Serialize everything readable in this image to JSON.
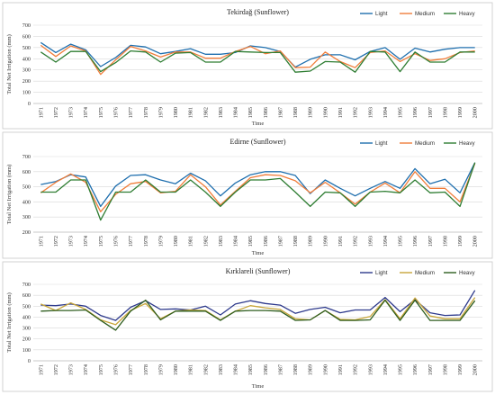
{
  "chart_data": [
    {
      "type": "line",
      "title": "Tekirdağ (Sunflower)",
      "xlabel": "Time",
      "ylabel": "Total Net Irrigation (mm)",
      "ylim": [
        0,
        700
      ],
      "yticks": [
        0,
        100,
        200,
        300,
        400,
        500,
        600,
        700
      ],
      "grid": true,
      "legend": "top-right",
      "categories": [
        "1971",
        "1972",
        "1973",
        "1974",
        "1975",
        "1976",
        "1977",
        "1978",
        "1979",
        "1980",
        "1981",
        "1982",
        "1983",
        "1984",
        "1985",
        "1986",
        "1987",
        "1988",
        "1989",
        "1990",
        "1991",
        "1992",
        "1993",
        "1994",
        "1995",
        "1996",
        "1997",
        "1998",
        "1999",
        "2000"
      ],
      "series": [
        {
          "name": "Light",
          "color": "#1f6fae",
          "values": [
            545,
            455,
            530,
            480,
            330,
            410,
            520,
            505,
            445,
            465,
            490,
            440,
            440,
            455,
            515,
            500,
            465,
            325,
            395,
            435,
            435,
            390,
            465,
            500,
            395,
            495,
            460,
            485,
            500,
            500
          ]
        },
        {
          "name": "Medium",
          "color": "#f07d3a",
          "values": [
            520,
            420,
            515,
            470,
            260,
            390,
            510,
            470,
            415,
            460,
            460,
            405,
            405,
            465,
            510,
            445,
            470,
            320,
            325,
            460,
            375,
            320,
            455,
            470,
            375,
            445,
            385,
            400,
            455,
            470
          ]
        },
        {
          "name": "Heavy",
          "color": "#2e7d32",
          "values": [
            460,
            370,
            465,
            465,
            285,
            365,
            470,
            460,
            370,
            450,
            455,
            370,
            370,
            465,
            460,
            455,
            455,
            280,
            290,
            375,
            370,
            280,
            465,
            460,
            285,
            460,
            370,
            370,
            460,
            460
          ]
        }
      ]
    },
    {
      "type": "line",
      "title": "Edirne (Sunflower)",
      "xlabel": "Time",
      "ylabel": "Total Net Irrigation (mm)",
      "ylim": [
        200,
        700
      ],
      "yticks": [
        200,
        300,
        400,
        500,
        600,
        700
      ],
      "grid": true,
      "legend": "top-right",
      "categories": [
        "1971",
        "1972",
        "1973",
        "1974",
        "1975",
        "1976",
        "1977",
        "1978",
        "1979",
        "1980",
        "1981",
        "1982",
        "1983",
        "1984",
        "1985",
        "1986",
        "1987",
        "1988",
        "1989",
        "1990",
        "1991",
        "1992",
        "1993",
        "1994",
        "1995",
        "1996",
        "1997",
        "1998",
        "1999",
        "2000"
      ],
      "series": [
        {
          "name": "Light",
          "color": "#1f6fae",
          "values": [
            515,
            535,
            580,
            565,
            370,
            505,
            575,
            580,
            545,
            520,
            590,
            540,
            440,
            525,
            580,
            600,
            600,
            575,
            455,
            545,
            490,
            440,
            490,
            535,
            490,
            620,
            520,
            550,
            460,
            660
          ]
        },
        {
          "name": "Medium",
          "color": "#f07d3a",
          "values": [
            460,
            530,
            585,
            530,
            335,
            450,
            520,
            535,
            460,
            470,
            580,
            500,
            380,
            470,
            560,
            580,
            575,
            540,
            460,
            530,
            460,
            385,
            465,
            525,
            460,
            600,
            490,
            490,
            400,
            655
          ]
        },
        {
          "name": "Heavy",
          "color": "#2e7d32",
          "values": [
            465,
            465,
            545,
            545,
            280,
            465,
            465,
            545,
            465,
            465,
            545,
            465,
            370,
            465,
            545,
            545,
            555,
            465,
            370,
            465,
            460,
            370,
            465,
            470,
            460,
            545,
            460,
            465,
            370,
            660
          ]
        }
      ]
    },
    {
      "type": "line",
      "title": "Kırklareli (Sunflower)",
      "xlabel": "Time",
      "ylabel": "Total Net Irrigation (mm)",
      "ylim": [
        0,
        700
      ],
      "yticks": [
        0,
        100,
        200,
        300,
        400,
        500,
        600,
        700
      ],
      "grid": true,
      "legend": "top-right",
      "categories": [
        "1971",
        "1972",
        "1973",
        "1974",
        "1975",
        "1976",
        "1977",
        "1978",
        "1979",
        "1980",
        "1981",
        "1982",
        "1983",
        "1984",
        "1985",
        "1986",
        "1987",
        "1988",
        "1989",
        "1990",
        "1991",
        "1992",
        "1993",
        "1994",
        "1995",
        "1996",
        "1997",
        "1998",
        "1999",
        "2000"
      ],
      "series": [
        {
          "name": "Light",
          "color": "#2e3a8c",
          "values": [
            510,
            505,
            520,
            500,
            415,
            370,
            490,
            550,
            470,
            475,
            465,
            500,
            420,
            520,
            550,
            525,
            510,
            435,
            470,
            490,
            440,
            465,
            465,
            580,
            450,
            560,
            440,
            415,
            420,
            645
          ]
        },
        {
          "name": "Medium",
          "color": "#c8a63a",
          "values": [
            520,
            460,
            530,
            470,
            375,
            330,
            460,
            525,
            385,
            455,
            465,
            460,
            375,
            455,
            505,
            485,
            470,
            385,
            375,
            460,
            380,
            375,
            405,
            560,
            385,
            575,
            410,
            385,
            385,
            580
          ]
        },
        {
          "name": "Heavy",
          "color": "#2e5d1e",
          "values": [
            455,
            460,
            460,
            465,
            370,
            280,
            455,
            555,
            375,
            455,
            455,
            455,
            370,
            455,
            460,
            460,
            455,
            370,
            375,
            460,
            370,
            370,
            375,
            555,
            370,
            555,
            370,
            370,
            370,
            550
          ]
        }
      ]
    }
  ]
}
